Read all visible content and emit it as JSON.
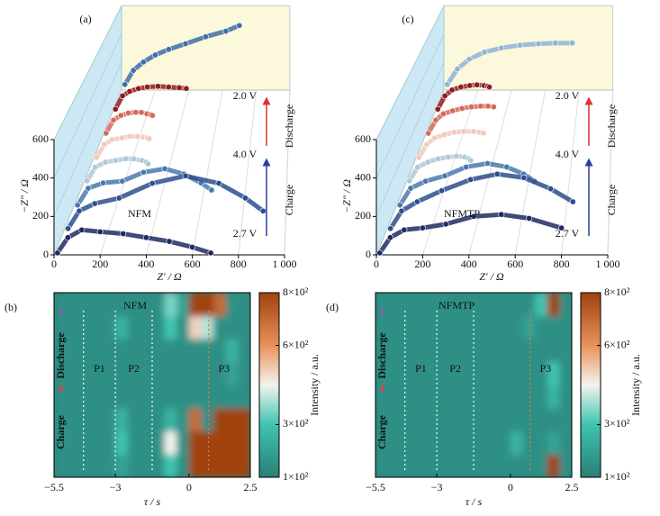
{
  "chart_data": [
    {
      "type": "nyquist3d",
      "panel_label": "(a)",
      "sample": "NFM",
      "xlabel": "Z′ / Ω",
      "ylabel": "−Z″ / Ω",
      "xlim": [
        0,
        1000
      ],
      "ylim": [
        0,
        600
      ],
      "xticks": [
        0,
        200,
        400,
        600,
        800,
        {
          "value": 1000,
          "label": "1 000"
        }
      ],
      "yticks": [
        0,
        200,
        400,
        600
      ],
      "voltage_labels": [
        "2.0 V",
        "4.0 V",
        "2.7 V"
      ],
      "state_labels": [
        "Discharge",
        "Charge"
      ],
      "series": [
        {
          "color": "#1e2b62",
          "x": [
            15,
            60,
            120,
            200,
            300,
            400,
            500,
            600,
            680
          ],
          "y": [
            10,
            90,
            130,
            120,
            110,
            90,
            70,
            40,
            10
          ]
        },
        {
          "color": "#2d4f8e",
          "x": [
            20,
            70,
            140,
            250,
            400,
            550,
            700,
            820,
            900
          ],
          "y": [
            15,
            110,
            150,
            180,
            260,
            300,
            260,
            180,
            110
          ]
        },
        {
          "color": "#4a79ad",
          "x": [
            20,
            70,
            140,
            230,
            330,
            430,
            520,
            600,
            650
          ],
          "y": [
            15,
            110,
            140,
            150,
            200,
            220,
            190,
            140,
            100
          ]
        },
        {
          "color": "#b0c8d8",
          "x": [
            20,
            60,
            110,
            160,
            210,
            250,
            290,
            310,
            320
          ],
          "y": [
            20,
            100,
            130,
            140,
            150,
            150,
            140,
            130,
            120
          ]
        },
        {
          "color": "#f2c9bb",
          "x": [
            20,
            60,
            100,
            150,
            190,
            230,
            260,
            280,
            290
          ],
          "y": [
            20,
            100,
            130,
            140,
            150,
            150,
            145,
            140,
            135
          ]
        },
        {
          "color": "#d36a5c",
          "x": [
            20,
            60,
            100,
            140,
            180,
            210,
            240,
            260,
            270
          ],
          "y": [
            25,
            110,
            140,
            155,
            160,
            160,
            150,
            145,
            140
          ]
        },
        {
          "color": "#8e1b1f",
          "x": [
            20,
            60,
            100,
            150,
            200,
            260,
            320,
            380,
            420
          ],
          "y": [
            30,
            120,
            150,
            170,
            180,
            185,
            180,
            175,
            170
          ]
        },
        {
          "color": "#3d6fa8",
          "x": [
            20,
            70,
            130,
            200,
            280,
            380,
            500,
            620,
            700
          ],
          "y": [
            40,
            140,
            200,
            250,
            290,
            330,
            380,
            420,
            460
          ]
        }
      ]
    },
    {
      "type": "heatmap",
      "panel_label": "(b)",
      "title": "NFM",
      "xlabel": "τ / s",
      "zlabel": "Intensity / a.u.",
      "xlim": [
        -5.5,
        2.5
      ],
      "xticks": [
        {
          "value": -5.5,
          "label": "−5.5"
        },
        {
          "value": -3,
          "label": "−3"
        },
        0,
        2.5
      ],
      "zlim": [
        100,
        800
      ],
      "zticks": [
        {
          "value": 100,
          "label": "1×10²"
        },
        {
          "value": 300,
          "label": "3×10²"
        },
        {
          "value": 600,
          "label": "6×10²"
        },
        {
          "value": 800,
          "label": "8×10²"
        }
      ],
      "colorscale": [
        [
          100,
          "#2a7f77"
        ],
        [
          300,
          "#3fc4b0"
        ],
        [
          450,
          "#f3f3ee"
        ],
        [
          600,
          "#e8915a"
        ],
        [
          800,
          "#a0420e"
        ]
      ],
      "state_labels": [
        "Discharge",
        "Charge"
      ],
      "state_colors": [
        "#8e5fb0",
        "#e0414a"
      ],
      "dividers": [
        -4.3,
        -3.0,
        -1.5,
        0.8
      ],
      "regions": [
        "P1",
        "P2",
        "P3"
      ],
      "region_colors": [
        "#8fd6cc",
        "#8fd6cc",
        "#e0793a"
      ],
      "xbins": [
        -5.5,
        -5,
        -4.5,
        -4,
        -3.5,
        -3,
        -2.5,
        -2,
        -1.5,
        -1,
        -0.5,
        0,
        0.5,
        1,
        1.5,
        2,
        2.5
      ],
      "z": [
        [
          150,
          150,
          150,
          150,
          150,
          200,
          150,
          150,
          150,
          300,
          150,
          800,
          800,
          800,
          800,
          800
        ],
        [
          150,
          150,
          150,
          150,
          150,
          300,
          150,
          150,
          150,
          450,
          150,
          800,
          800,
          800,
          800,
          800
        ],
        [
          150,
          150,
          150,
          150,
          150,
          250,
          150,
          150,
          150,
          250,
          150,
          700,
          150,
          800,
          800,
          800
        ],
        [
          150,
          150,
          150,
          150,
          150,
          150,
          150,
          150,
          150,
          150,
          150,
          150,
          150,
          150,
          150,
          150
        ],
        [
          150,
          150,
          150,
          150,
          150,
          150,
          150,
          150,
          150,
          150,
          150,
          150,
          150,
          150,
          200,
          150
        ],
        [
          150,
          150,
          150,
          150,
          150,
          150,
          150,
          150,
          150,
          150,
          150,
          150,
          150,
          150,
          250,
          150
        ],
        [
          150,
          150,
          150,
          150,
          150,
          250,
          150,
          150,
          150,
          300,
          150,
          500,
          400,
          150,
          150,
          150
        ],
        [
          150,
          150,
          150,
          150,
          150,
          150,
          150,
          150,
          150,
          350,
          200,
          800,
          800,
          700,
          150,
          150
        ]
      ]
    },
    {
      "type": "nyquist3d",
      "panel_label": "(c)",
      "sample": "NFMTP",
      "xlabel": "Z′ / Ω",
      "ylabel": "−Z″ / Ω",
      "xlim": [
        0,
        1000
      ],
      "ylim": [
        0,
        600
      ],
      "xticks": [
        0,
        200,
        400,
        600,
        800,
        {
          "value": 1000,
          "label": "1 000"
        }
      ],
      "yticks": [
        0,
        200,
        400,
        600
      ],
      "voltage_labels": [
        "2.0 V",
        "4.0 V",
        "2.7 V"
      ],
      "state_labels": [
        "Discharge",
        "Charge"
      ],
      "series": [
        {
          "color": "#1e2b62",
          "x": [
            15,
            60,
            120,
            200,
            300,
            420,
            540,
            660,
            800
          ],
          "y": [
            10,
            90,
            130,
            140,
            160,
            200,
            210,
            190,
            140
          ]
        },
        {
          "color": "#2d4f8e",
          "x": [
            20,
            70,
            140,
            250,
            380,
            500,
            620,
            740,
            840
          ],
          "y": [
            15,
            110,
            160,
            220,
            280,
            310,
            290,
            230,
            160
          ]
        },
        {
          "color": "#4a79ad",
          "x": [
            20,
            70,
            140,
            230,
            330,
            430,
            520,
            600,
            650
          ],
          "y": [
            15,
            110,
            150,
            180,
            230,
            250,
            230,
            190,
            150
          ]
        },
        {
          "color": "#b0c8d8",
          "x": [
            20,
            60,
            110,
            160,
            210,
            250,
            290,
            310,
            320
          ],
          "y": [
            20,
            100,
            130,
            150,
            160,
            165,
            160,
            150,
            140
          ]
        },
        {
          "color": "#f2c9bb",
          "x": [
            20,
            60,
            100,
            150,
            200,
            250,
            300,
            330,
            350
          ],
          "y": [
            20,
            100,
            140,
            160,
            175,
            180,
            180,
            175,
            170
          ]
        },
        {
          "color": "#d36a5c",
          "x": [
            20,
            60,
            100,
            150,
            200,
            250,
            300,
            340,
            370
          ],
          "y": [
            25,
            110,
            150,
            170,
            185,
            195,
            200,
            200,
            195
          ]
        },
        {
          "color": "#8e1b1f",
          "x": [
            20,
            60,
            100,
            150,
            200,
            240,
            280,
            300,
            310
          ],
          "y": [
            30,
            120,
            160,
            180,
            190,
            195,
            190,
            185,
            180
          ]
        },
        {
          "color": "#8fb4d4",
          "x": [
            20,
            80,
            150,
            240,
            340,
            450,
            560,
            660,
            760
          ],
          "y": [
            40,
            150,
            220,
            270,
            300,
            320,
            330,
            335,
            335
          ]
        }
      ]
    },
    {
      "type": "heatmap",
      "panel_label": "(d)",
      "title": "NFMTP",
      "xlabel": "τ / s",
      "zlabel": "Intensity / a.u.",
      "xlim": [
        -5.5,
        2.5
      ],
      "xticks": [
        {
          "value": -5.5,
          "label": "−5.5"
        },
        {
          "value": -3,
          "label": "−3"
        },
        0,
        2.5
      ],
      "zlim": [
        100,
        800
      ],
      "zticks": [
        {
          "value": 100,
          "label": "1×10²"
        },
        {
          "value": 300,
          "label": "3×10²"
        },
        {
          "value": 600,
          "label": "6×10²"
        },
        {
          "value": 800,
          "label": "8×10²"
        }
      ],
      "colorscale": [
        [
          100,
          "#2a7f77"
        ],
        [
          300,
          "#3fc4b0"
        ],
        [
          450,
          "#f3f3ee"
        ],
        [
          600,
          "#e8915a"
        ],
        [
          800,
          "#a0420e"
        ]
      ],
      "state_labels": [
        "Discharge",
        "Charge"
      ],
      "state_colors": [
        "#8e5fb0",
        "#e0414a"
      ],
      "dividers": [
        -4.3,
        -3.0,
        -1.5,
        0.8
      ],
      "regions": [
        "P1",
        "P2",
        "P3"
      ],
      "region_colors": [
        "#8fd6cc",
        "#8fd6cc",
        "#e0793a"
      ],
      "xbins": [
        -5.5,
        -5,
        -4.5,
        -4,
        -3.5,
        -3,
        -2.5,
        -2,
        -1.5,
        -1,
        -0.5,
        0,
        0.5,
        1,
        1.5,
        2,
        2.5
      ],
      "z": [
        [
          150,
          150,
          150,
          150,
          150,
          150,
          150,
          150,
          150,
          150,
          150,
          150,
          150,
          150,
          800,
          150
        ],
        [
          150,
          150,
          150,
          150,
          150,
          150,
          150,
          150,
          150,
          150,
          150,
          250,
          150,
          150,
          200,
          150
        ],
        [
          150,
          150,
          150,
          150,
          150,
          150,
          150,
          150,
          150,
          150,
          150,
          150,
          150,
          150,
          150,
          150
        ],
        [
          150,
          150,
          150,
          150,
          150,
          150,
          150,
          150,
          150,
          150,
          150,
          150,
          150,
          150,
          250,
          150
        ],
        [
          150,
          150,
          150,
          150,
          150,
          150,
          150,
          150,
          150,
          150,
          150,
          150,
          150,
          150,
          300,
          150
        ],
        [
          150,
          150,
          150,
          150,
          150,
          150,
          150,
          150,
          150,
          150,
          150,
          150,
          150,
          150,
          150,
          150
        ],
        [
          150,
          150,
          150,
          150,
          150,
          150,
          150,
          150,
          150,
          150,
          150,
          150,
          200,
          150,
          150,
          150
        ],
        [
          150,
          150,
          150,
          150,
          150,
          150,
          150,
          150,
          150,
          150,
          150,
          150,
          150,
          300,
          800,
          150
        ]
      ]
    }
  ]
}
